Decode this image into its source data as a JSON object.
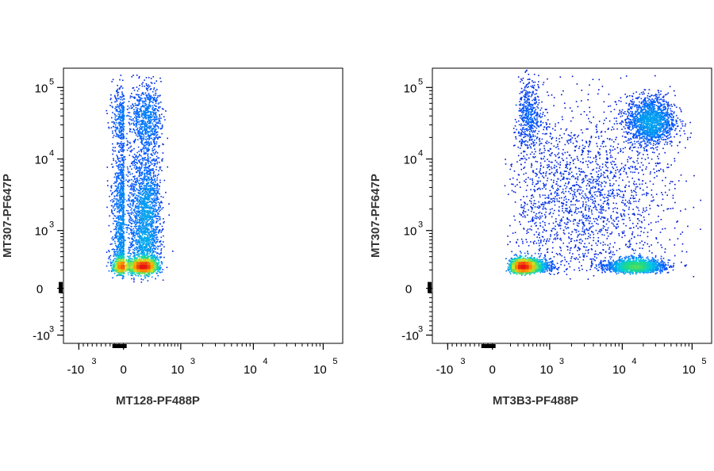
{
  "chart_data": [
    {
      "type": "scatter",
      "subtype": "flow-cytometry-density",
      "xlabel": "MT128-PF488P",
      "ylabel": "MT307-PF647P",
      "x_scale": "biexponential",
      "y_scale": "biexponential",
      "xlim": [
        -3000,
        150000
      ],
      "ylim": [
        -3000,
        150000
      ],
      "x_ticks": [
        {
          "value": -1000,
          "base": "-10",
          "exp": "3"
        },
        {
          "value": 0,
          "base": "0",
          "exp": ""
        },
        {
          "value": 1000,
          "base": "10",
          "exp": "3"
        },
        {
          "value": 10000,
          "base": "10",
          "exp": "4"
        },
        {
          "value": 100000,
          "base": "10",
          "exp": "5"
        }
      ],
      "y_ticks": [
        {
          "value": -1000,
          "base": "-10",
          "exp": "3"
        },
        {
          "value": 0,
          "base": "0",
          "exp": ""
        },
        {
          "value": 1000,
          "base": "10",
          "exp": "3"
        },
        {
          "value": 10000,
          "base": "10",
          "exp": "4"
        },
        {
          "value": 100000,
          "base": "10",
          "exp": "5"
        }
      ],
      "populations": [
        {
          "x_center": 60,
          "y_center": 150,
          "x_spread": 120,
          "y_spread_decades": 0.25,
          "count": 2600,
          "density": "peak"
        },
        {
          "x_center": 80,
          "y_center": 1500,
          "x_spread": 150,
          "y_spread_decades": 1.2,
          "count": 3200,
          "density": "medium"
        },
        {
          "x_center": 90,
          "y_center": 40000,
          "x_spread": 160,
          "y_spread_decades": 0.45,
          "count": 900,
          "density": "medium"
        }
      ],
      "grid": false,
      "legend": "none"
    },
    {
      "type": "scatter",
      "subtype": "flow-cytometry-density",
      "xlabel": "MT3B3-PF488P",
      "ylabel": "MT307-PF647P",
      "x_scale": "biexponential",
      "y_scale": "biexponential",
      "xlim": [
        -3000,
        150000
      ],
      "ylim": [
        -3000,
        150000
      ],
      "x_ticks": [
        {
          "value": -1000,
          "base": "-10",
          "exp": "3"
        },
        {
          "value": 0,
          "base": "0",
          "exp": ""
        },
        {
          "value": 1000,
          "base": "10",
          "exp": "3"
        },
        {
          "value": 10000,
          "base": "10",
          "exp": "4"
        },
        {
          "value": 100000,
          "base": "10",
          "exp": "5"
        }
      ],
      "y_ticks": [
        {
          "value": -1000,
          "base": "-10",
          "exp": "3"
        },
        {
          "value": 0,
          "base": "0",
          "exp": ""
        },
        {
          "value": 1000,
          "base": "10",
          "exp": "3"
        },
        {
          "value": 10000,
          "base": "10",
          "exp": "4"
        },
        {
          "value": 100000,
          "base": "10",
          "exp": "5"
        }
      ],
      "populations": [
        {
          "x_center": 300,
          "y_center": 150,
          "x_spread_decades": 0.45,
          "y_spread_decades": 0.25,
          "count": 3000,
          "density": "peak"
        },
        {
          "x_center": 15000,
          "y_center": 150,
          "x_spread_decades": 0.4,
          "y_spread_decades": 0.25,
          "count": 1800,
          "density": "high"
        },
        {
          "x_center": 25000,
          "y_center": 35000,
          "x_spread_decades": 0.35,
          "y_spread_decades": 0.35,
          "count": 1600,
          "density": "high"
        },
        {
          "x_center": 400,
          "y_center": 40000,
          "x_spread_decades": 0.3,
          "y_spread_decades": 0.5,
          "count": 500,
          "density": "medium"
        },
        {
          "x_center": 3000,
          "y_center": 3000,
          "x_spread_decades": 1.2,
          "y_spread_decades": 1.2,
          "count": 2000,
          "density": "low"
        }
      ],
      "grid": false,
      "legend": "none"
    }
  ]
}
